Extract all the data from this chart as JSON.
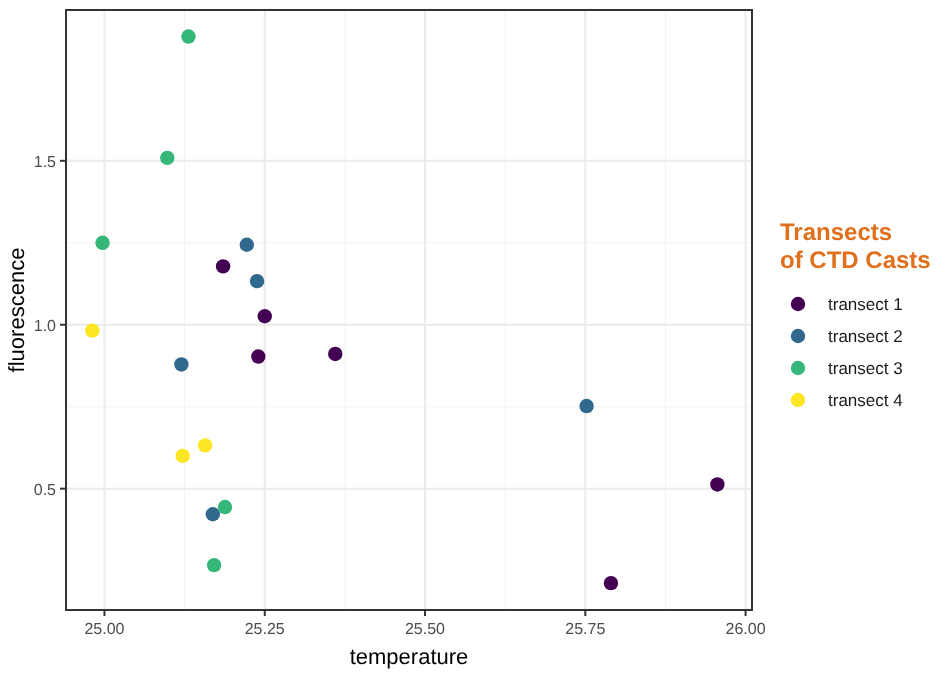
{
  "chart_data": {
    "type": "scatter",
    "xlabel": "temperature",
    "ylabel": "fluorescence",
    "legend_title": "Transects\nof CTD Casts",
    "legend": "right",
    "grid": true,
    "marker": "circle",
    "xlim": [
      24.94,
      26.01
    ],
    "xticks": [
      {
        "value": 25,
        "label": "25.00"
      },
      25.25,
      {
        "value": 25.5,
        "label": "25.50"
      },
      25.75,
      {
        "value": 26,
        "label": "26.00"
      }
    ],
    "ylim": [
      0.13,
      1.96
    ],
    "yticks": [
      0.5,
      {
        "value": 1,
        "label": "1.0"
      },
      1.5
    ],
    "series": [
      {
        "name": "transect 1",
        "color": "#440154",
        "x": [
          25.185,
          25.25,
          25.24,
          25.36,
          25.956,
          25.79
        ],
        "values": [
          1.178,
          1.026,
          0.903,
          0.911,
          0.513,
          0.212
        ]
      },
      {
        "name": "transect 2",
        "color": "#31688e",
        "x": [
          25.222,
          25.238,
          25.12,
          25.169,
          25.752
        ],
        "values": [
          1.244,
          1.133,
          0.879,
          0.422,
          0.752
        ]
      },
      {
        "name": "transect 3",
        "color": "#35b779",
        "x": [
          25.131,
          25.098,
          24.997,
          25.188,
          25.171
        ],
        "values": [
          1.879,
          1.509,
          1.25,
          0.444,
          0.267
        ]
      },
      {
        "name": "transect 4",
        "color": "#fde725",
        "x": [
          24.981,
          25.157,
          25.122
        ],
        "values": [
          0.982,
          0.632,
          0.6
        ]
      }
    ]
  }
}
